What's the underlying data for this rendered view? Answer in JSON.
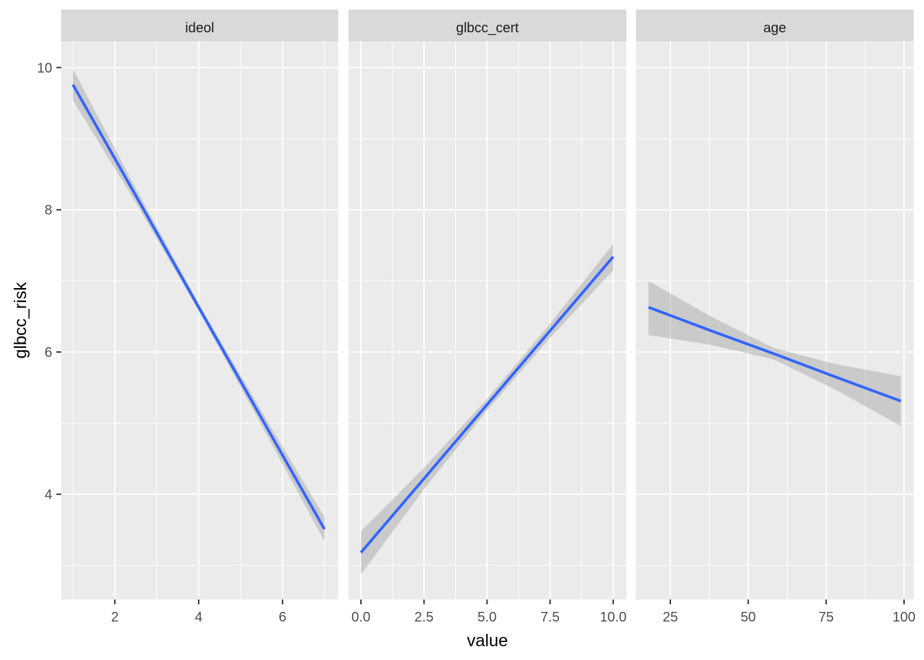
{
  "chart_data": {
    "type": "line",
    "xlabel": "value",
    "ylabel": "glbcc_risk",
    "ylim": [
      2.52,
      10.37
    ],
    "y_ticks": [
      4,
      6,
      8,
      10
    ],
    "y_minor": [
      3,
      5,
      7,
      9
    ],
    "grid": true,
    "colors": {
      "line": "#3366ff",
      "band": "#999999",
      "panel": "#ebebeb",
      "strip": "#d9d9d9"
    },
    "panels": [
      {
        "strip": "ideol",
        "xlim": [
          0.72,
          7.33
        ],
        "x_ticks": [
          2,
          4,
          6
        ],
        "x_tick_labels": [
          "2",
          "4",
          "6"
        ],
        "x_minor": [
          1,
          3,
          5,
          7
        ],
        "x": [
          1,
          2.5,
          4,
          5.5,
          7
        ],
        "fit": [
          9.76,
          8.2,
          6.63,
          5.07,
          3.51
        ],
        "lower": [
          9.54,
          8.1,
          6.58,
          4.97,
          3.34
        ],
        "upper": [
          9.98,
          8.3,
          6.68,
          5.17,
          3.68
        ]
      },
      {
        "strip": "glbcc_cert",
        "xlim": [
          -0.49,
          10.52
        ],
        "x_ticks": [
          0,
          2.5,
          5,
          7.5,
          10
        ],
        "x_tick_labels": [
          "0.0",
          "2.5",
          "5.0",
          "7.5",
          "10.0"
        ],
        "x_minor": [
          1.25,
          3.75,
          6.25,
          8.75
        ],
        "x": [
          0,
          2.5,
          5,
          7.5,
          10
        ],
        "fit": [
          3.18,
          4.22,
          5.26,
          6.3,
          7.34
        ],
        "lower": [
          2.87,
          4.07,
          5.18,
          6.2,
          7.15
        ],
        "upper": [
          3.48,
          4.37,
          5.34,
          6.4,
          7.52
        ]
      },
      {
        "strip": "age",
        "xlim": [
          13.97,
          103.1
        ],
        "x_ticks": [
          25,
          50,
          75,
          100
        ],
        "x_tick_labels": [
          "25",
          "50",
          "75",
          "100"
        ],
        "x_minor": [
          37.5,
          62.5,
          87.5
        ],
        "x": [
          18,
          38,
          58,
          78,
          99
        ],
        "fit": [
          6.63,
          6.3,
          5.98,
          5.65,
          5.31
        ],
        "lower": [
          6.24,
          6.1,
          5.9,
          5.47,
          4.96
        ],
        "upper": [
          7.0,
          6.5,
          6.06,
          5.83,
          5.66
        ]
      }
    ]
  }
}
